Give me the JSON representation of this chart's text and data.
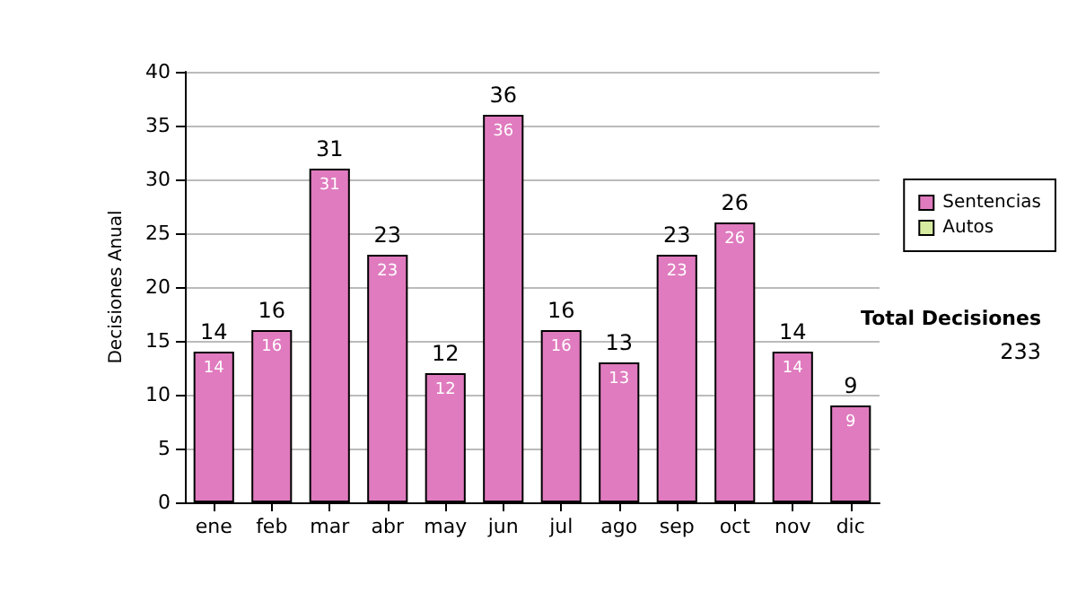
{
  "chart_data": {
    "type": "bar",
    "ylabel": "Decisiones Anual",
    "categories": [
      "ene",
      "feb",
      "mar",
      "abr",
      "may",
      "jun",
      "jul",
      "ago",
      "sep",
      "oct",
      "nov",
      "dic"
    ],
    "series": [
      {
        "name": "Sentencias",
        "color": "#e07bbf",
        "values": [
          14,
          16,
          31,
          23,
          12,
          36,
          16,
          13,
          23,
          26,
          14,
          9
        ]
      },
      {
        "name": "Autos",
        "color": "#d6eba0",
        "values": [
          null,
          null,
          null,
          null,
          null,
          null,
          null,
          null,
          null,
          null,
          null,
          null
        ]
      }
    ],
    "stacked": true,
    "data_labels": true,
    "totals": [
      "14",
      "16",
      "31",
      "23",
      "12",
      "36",
      "16",
      "13",
      "23",
      "26",
      "14",
      "9"
    ],
    "ylim": [
      0,
      40
    ],
    "yticks": [
      0,
      5,
      10,
      15,
      20,
      25,
      30,
      35,
      40
    ],
    "grid": "y",
    "legend": "right",
    "annotations": [
      "Total Decisiones",
      "233"
    ]
  }
}
